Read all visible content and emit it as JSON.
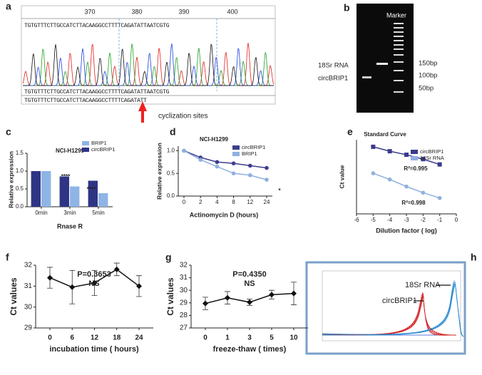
{
  "panel_a": {
    "label": "a",
    "ruler": [
      "370",
      "380",
      "390",
      "400"
    ],
    "sequence_top": "TGTGTTTCTTGCCATCTTACAAGGCCTTTTCAGATATTAATCGTG",
    "sequence_call": "TGTGTTTCTTGCCATCTTACAAGGCCTTTTCAGATATTAATCGTG",
    "sequence_ref": "TGTGTTTCTTGCCATCTTACAAGGCCTTTTCAGATATT",
    "note": "cyclization sites"
  },
  "panel_b": {
    "label": "b",
    "marker": "Marker",
    "lanes": [
      "18Sr RNA",
      "circBRIP1"
    ],
    "sizes": [
      "150bp",
      "100bp",
      "50bp"
    ]
  },
  "panel_h": {
    "label": "h",
    "curves": [
      "18Sr RNA",
      "circBRIP1"
    ]
  },
  "chart_data": [
    {
      "type": "bar",
      "label": "c",
      "title": "NCI-H1299",
      "xlabel": "Rnase R",
      "ylabel": "Relative expression",
      "categories": [
        "0min",
        "3min",
        "5min"
      ],
      "series": [
        {
          "name": "BRIP1",
          "color": "#8fb4e6",
          "values": [
            1.0,
            0.57,
            0.38
          ]
        },
        {
          "name": "circBRIP1",
          "color": "#2f3585",
          "values": [
            1.0,
            0.85,
            0.73
          ]
        }
      ],
      "ylim": [
        0,
        1.5
      ],
      "yticks": [
        {
          "value": 0,
          "label": "0.0"
        },
        {
          "value": 0.5,
          "label": "0.5"
        },
        {
          "value": 1,
          "label": "1.0"
        },
        {
          "value": 1.5,
          "label": "1.5"
        }
      ],
      "annotations": [
        "****",
        "****"
      ]
    },
    {
      "type": "line",
      "label": "d",
      "title": "NCI-H1299",
      "xlabel": "Actinomycin D (hours)",
      "ylabel": "Relative expression",
      "categories": [
        "0",
        "2",
        "4",
        "8",
        "12",
        "24"
      ],
      "series": [
        {
          "name": "circBRIP1",
          "color": "#3d3d8f",
          "values": [
            1.0,
            0.85,
            0.75,
            0.72,
            0.67,
            0.62
          ]
        },
        {
          "name": "BRIP1",
          "color": "#8fb0e0",
          "values": [
            1.0,
            0.8,
            0.65,
            0.5,
            0.46,
            0.36
          ]
        }
      ],
      "ylim": [
        0,
        1.1
      ],
      "yticks": [
        {
          "value": 0,
          "label": "0.0"
        },
        {
          "value": 0.5,
          "label": "0.5"
        },
        {
          "value": 1,
          "label": "1.0"
        }
      ],
      "annotations": [
        "*"
      ]
    },
    {
      "type": "line",
      "label": "e",
      "title": "Standard Curve",
      "xlabel": "Dilution factor ( log)",
      "ylabel": "Ct value",
      "x": [
        -5,
        -4,
        -3,
        -2,
        -1
      ],
      "series": [
        {
          "name": "circBRIP1",
          "color": "#3a3a8c",
          "values": [
            38,
            35.5,
            33.5,
            31,
            28
          ]
        },
        {
          "name": "18Sr RNA",
          "color": "#8fb0e0",
          "values": [
            23,
            19.5,
            15.5,
            12,
            9
          ]
        }
      ],
      "xlim": [
        -6,
        0
      ],
      "xticks": [
        -6,
        -5,
        -4,
        -3,
        -2,
        -1,
        0
      ],
      "ylim": [
        0,
        42
      ],
      "annotations": [
        "R²=0.995",
        "R²=0.998"
      ]
    },
    {
      "type": "line",
      "label": "f",
      "xlabel": "incubation time ( hours)",
      "ylabel": "Ct values",
      "categories": [
        "0",
        "6",
        "12",
        "18",
        "24"
      ],
      "series": [
        {
          "color": "#111111",
          "values": [
            31.4,
            30.95,
            31.15,
            31.8,
            31.0
          ],
          "errors": [
            0.5,
            0.8,
            0.6,
            0.3,
            0.5
          ]
        }
      ],
      "ylim": [
        29,
        32
      ],
      "yticks": [
        29,
        30,
        31,
        32
      ],
      "annotations": [
        "P=0.3653",
        "NS"
      ]
    },
    {
      "type": "line",
      "label": "g",
      "xlabel": "freeze-thaw ( times)",
      "ylabel": "Ct values",
      "categories": [
        "0",
        "1",
        "3",
        "5",
        "10"
      ],
      "series": [
        {
          "color": "#111111",
          "values": [
            28.95,
            29.4,
            29.05,
            29.65,
            29.75
          ],
          "errors": [
            0.5,
            0.5,
            0.25,
            0.35,
            0.9
          ]
        }
      ],
      "ylim": [
        27,
        32
      ],
      "yticks": [
        27,
        28,
        29,
        30,
        31,
        32
      ],
      "annotations": [
        "P=0.4350",
        "NS"
      ]
    }
  ]
}
